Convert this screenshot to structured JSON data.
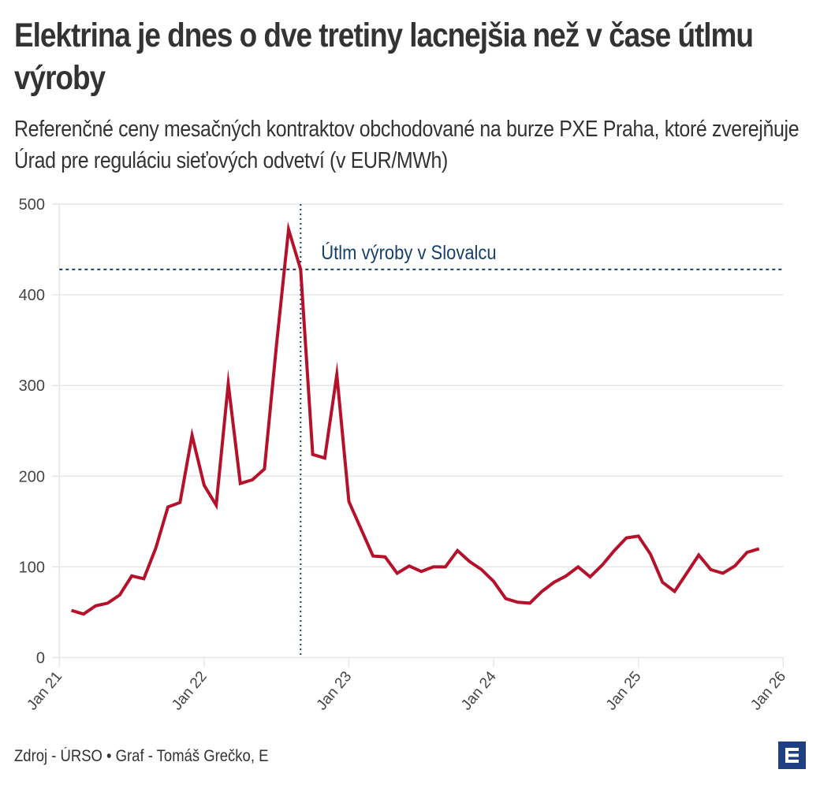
{
  "header": {
    "title": "Elektrina je dnes o dve tretiny lacnejšia než v čase útlmu výroby",
    "subtitle": "Referenčné ceny mesačných kontraktov obchodované na burze PXE Praha, ktoré zverejňuje Úrad pre reguláciu sieťových odvetví (v EUR/MWh)"
  },
  "footer": {
    "source": "Zdroj - ÚRSO • Graf - Tomáš Grečko, E",
    "logo": "e-logo-icon"
  },
  "colors": {
    "line": "#b5112b",
    "annotation": "#17406d",
    "grid": "#e6e6e6",
    "text": "#333333",
    "logo": "#1f3f82"
  },
  "chart_data": {
    "type": "line",
    "title": "Elektrina je dnes o dve tretiny lacnejšia než v čase útlmu výroby",
    "subtitle": "Referenčné ceny mesačných kontraktov obchodované na burze PXE Praha, ktoré zverejňuje Úrad pre reguláciu sieťových odvetví (v EUR/MWh)",
    "xlabel": "",
    "ylabel": "",
    "ylim": [
      0,
      500
    ],
    "yticks": [
      0,
      100,
      200,
      300,
      400,
      500
    ],
    "xlim": [
      "2021-01",
      "2026-01"
    ],
    "xticks": [
      {
        "date": "2021-01",
        "label": "Jan 21"
      },
      {
        "date": "2022-01",
        "label": "Jan 22"
      },
      {
        "date": "2023-01",
        "label": "Jan 23"
      },
      {
        "date": "2024-01",
        "label": "Jan 24"
      },
      {
        "date": "2025-01",
        "label": "Jan 25"
      },
      {
        "date": "2026-01",
        "label": "Jan 26"
      }
    ],
    "grid": true,
    "series": [
      {
        "name": "Referenčná cena (EUR/MWh)",
        "x": [
          "2021-02",
          "2021-03",
          "2021-04",
          "2021-05",
          "2021-06",
          "2021-07",
          "2021-08",
          "2021-09",
          "2021-10",
          "2021-11",
          "2021-12",
          "2022-01",
          "2022-02",
          "2022-03",
          "2022-04",
          "2022-05",
          "2022-06",
          "2022-07",
          "2022-08",
          "2022-09",
          "2022-10",
          "2022-11",
          "2022-12",
          "2023-01",
          "2023-02",
          "2023-03",
          "2023-04",
          "2023-05",
          "2023-06",
          "2023-07",
          "2023-08",
          "2023-09",
          "2023-10",
          "2023-11",
          "2023-12",
          "2024-01",
          "2024-02",
          "2024-03",
          "2024-04",
          "2024-05",
          "2024-06",
          "2024-07",
          "2024-08",
          "2024-09",
          "2024-10",
          "2024-11",
          "2024-12",
          "2025-01",
          "2025-02",
          "2025-03",
          "2025-04",
          "2025-05",
          "2025-06",
          "2025-07",
          "2025-08",
          "2025-09",
          "2025-10",
          "2025-11"
        ],
        "values": [
          52,
          48,
          57,
          60,
          69,
          90,
          87,
          121,
          166,
          171,
          245,
          190,
          168,
          302,
          192,
          196,
          208,
          345,
          472,
          428,
          224,
          220,
          312,
          172,
          142,
          112,
          111,
          93,
          101,
          95,
          100,
          100,
          118,
          106,
          97,
          84,
          65,
          61,
          60,
          73,
          83,
          90,
          100,
          89,
          102,
          118,
          132,
          134,
          114,
          83,
          73,
          93,
          113,
          97,
          93,
          101,
          116,
          120
        ]
      }
    ],
    "annotations": [
      {
        "type": "vline",
        "x": "2022-09",
        "style": "dotted"
      },
      {
        "type": "hline",
        "y": 428,
        "style": "dotted"
      },
      {
        "type": "text",
        "text": "Útlm výroby v Slovalcu",
        "x": "2022-09",
        "y": 428,
        "position": "above-right"
      }
    ],
    "legend": "none"
  }
}
